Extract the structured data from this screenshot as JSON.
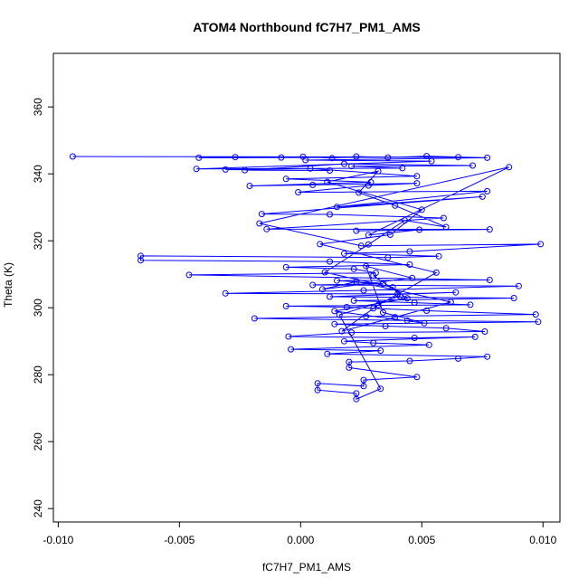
{
  "chart_data": {
    "type": "scatter",
    "title": "ATOM4 Northbound fC7H7_PM1_AMS",
    "xlabel": "fC7H7_PM1_AMS",
    "ylabel": "Theta (K)",
    "xlim": [
      -0.0102,
      0.0107
    ],
    "ylim": [
      236,
      376
    ],
    "xticks": [
      -0.01,
      -0.005,
      0.0,
      0.005,
      0.01
    ],
    "xtick_labels": [
      "-0.010",
      "-0.005",
      "0.000",
      "0.005",
      "0.010"
    ],
    "yticks": [
      240,
      260,
      280,
      300,
      320,
      340,
      360
    ],
    "ytick_labels": [
      "240",
      "260",
      "280",
      "300",
      "320",
      "340",
      "360"
    ],
    "grid": false,
    "series": [
      {
        "style": "points connected by lines, open circles",
        "color": "#0000ff",
        "points": [
          [
            -0.0094,
            345.2
          ],
          [
            0.0065,
            345.0
          ],
          [
            -0.0042,
            344.8
          ],
          [
            -0.0027,
            345.0
          ],
          [
            -0.0008,
            344.9
          ],
          [
            0.0001,
            345.1
          ],
          [
            0.0013,
            344.7
          ],
          [
            0.0023,
            345.2
          ],
          [
            0.0036,
            344.9
          ],
          [
            0.0052,
            345.3
          ],
          [
            0.0077,
            344.8
          ],
          [
            0.0002,
            344.1
          ],
          [
            0.0054,
            343.8
          ],
          [
            -0.0043,
            341.5
          ],
          [
            0.0042,
            341.7
          ],
          [
            0.0021,
            342.3
          ],
          [
            0.0071,
            342.5
          ],
          [
            0.0018,
            343.0
          ],
          [
            -0.0023,
            341.1
          ],
          [
            0.0012,
            341.0
          ],
          [
            -0.0031,
            341.3
          ],
          [
            0.0004,
            341.6
          ],
          [
            0.0048,
            339.3
          ],
          [
            -0.0006,
            338.5
          ],
          [
            0.0029,
            337.5
          ],
          [
            -0.0021,
            336.4
          ],
          [
            0.0005,
            336.7
          ],
          [
            0.0048,
            337.2
          ],
          [
            0.0028,
            336.5
          ],
          [
            -0.0001,
            334.5
          ],
          [
            0.0077,
            334.8
          ],
          [
            0.0015,
            330.1
          ],
          [
            0.0075,
            333.2
          ],
          [
            -0.0016,
            328.0
          ],
          [
            0.0012,
            327.9
          ],
          [
            0.0059,
            326.8
          ],
          [
            -0.0014,
            323.5
          ],
          [
            0.0078,
            323.4
          ],
          [
            0.0023,
            323.0
          ],
          [
            0.0049,
            323.3
          ],
          [
            0.0028,
            321.7
          ],
          [
            0.0086,
            342.0
          ],
          [
            -0.0017,
            325.2
          ],
          [
            0.0025,
            318.5
          ],
          [
            0.0099,
            319.0
          ],
          [
            0.0045,
            316.8
          ],
          [
            0.0018,
            316.2
          ],
          [
            0.0057,
            315.4
          ],
          [
            0.0036,
            315.0
          ],
          [
            -0.0066,
            315.5
          ],
          [
            -0.0066,
            314.2
          ],
          [
            0.0012,
            313.8
          ],
          [
            0.0045,
            312.9
          ],
          [
            -0.0006,
            312.1
          ],
          [
            0.0022,
            311.6
          ],
          [
            0.0031,
            310.4
          ],
          [
            -0.0046,
            309.8
          ],
          [
            0.0078,
            308.3
          ],
          [
            0.0015,
            308.1
          ],
          [
            0.0034,
            307.2
          ],
          [
            0.0005,
            306.8
          ],
          [
            0.009,
            306.5
          ],
          [
            0.0026,
            305.2
          ],
          [
            -0.0031,
            304.3
          ],
          [
            0.004,
            304.1
          ],
          [
            0.0064,
            304.6
          ],
          [
            0.0012,
            303.3
          ],
          [
            0.0088,
            302.9
          ],
          [
            0.0022,
            302.1
          ],
          [
            0.0047,
            301.5
          ],
          [
            0.007,
            300.9
          ],
          [
            -0.0006,
            300.5
          ],
          [
            0.0019,
            300.2
          ],
          [
            0.003,
            299.8
          ],
          [
            0.0052,
            299.1
          ],
          [
            0.0097,
            298.0
          ],
          [
            0.0027,
            297.4
          ],
          [
            -0.0019,
            296.8
          ],
          [
            0.0044,
            296.2
          ],
          [
            0.0098,
            295.8
          ],
          [
            0.0014,
            295.1
          ],
          [
            0.0035,
            294.5
          ],
          [
            0.006,
            293.9
          ],
          [
            0.0076,
            292.9
          ],
          [
            0.0021,
            292.6
          ],
          [
            -0.0005,
            291.4
          ],
          [
            0.0047,
            291.0
          ],
          [
            0.0072,
            291.3
          ],
          [
            0.0018,
            290.0
          ],
          [
            0.003,
            289.5
          ],
          [
            0.0053,
            288.9
          ],
          [
            -0.0004,
            287.6
          ],
          [
            0.0033,
            287.2
          ],
          [
            0.0011,
            286.2
          ],
          [
            0.0077,
            285.4
          ],
          [
            0.0065,
            284.8
          ],
          [
            0.0045,
            284.1
          ],
          [
            0.002,
            283.8
          ],
          [
            0.002,
            282.1
          ],
          [
            0.0048,
            279.3
          ],
          [
            0.0026,
            278.4
          ],
          [
            0.0026,
            276.6
          ],
          [
            0.0007,
            277.4
          ],
          [
            0.0007,
            275.4
          ],
          [
            0.0023,
            274.4
          ],
          [
            0.0023,
            272.7
          ],
          [
            0.0033,
            275.8
          ],
          [
            0.0016,
            297.9
          ],
          [
            0.0041,
            303.4
          ],
          [
            0.0038,
            306.1
          ],
          [
            0.001,
            310.6
          ],
          [
            0.0028,
            318.9
          ],
          [
            0.0043,
            326.1
          ],
          [
            0.006,
            324.1
          ],
          [
            0.0039,
            330.5
          ],
          [
            0.0024,
            334.4
          ],
          [
            0.0032,
            340.8
          ],
          [
            0.0011,
            337.6
          ],
          [
            0.005,
            329.3
          ],
          [
            0.0037,
            321.8
          ],
          [
            0.0008,
            319.0
          ],
          [
            0.0056,
            310.5
          ],
          [
            0.0032,
            300.8
          ],
          [
            0.0017,
            293.0
          ],
          [
            0.0039,
            297.2
          ],
          [
            0.0062,
            301.7
          ],
          [
            0.0023,
            307.8
          ],
          [
            0.0009,
            305.5
          ],
          [
            0.0046,
            308.9
          ],
          [
            0.0027,
            312.4
          ],
          [
            0.0034,
            298.6
          ],
          [
            0.0051,
            295.4
          ],
          [
            0.0014,
            299.0
          ],
          [
            0.0044,
            302.8
          ],
          [
            0.003,
            309.6
          ]
        ]
      }
    ]
  }
}
